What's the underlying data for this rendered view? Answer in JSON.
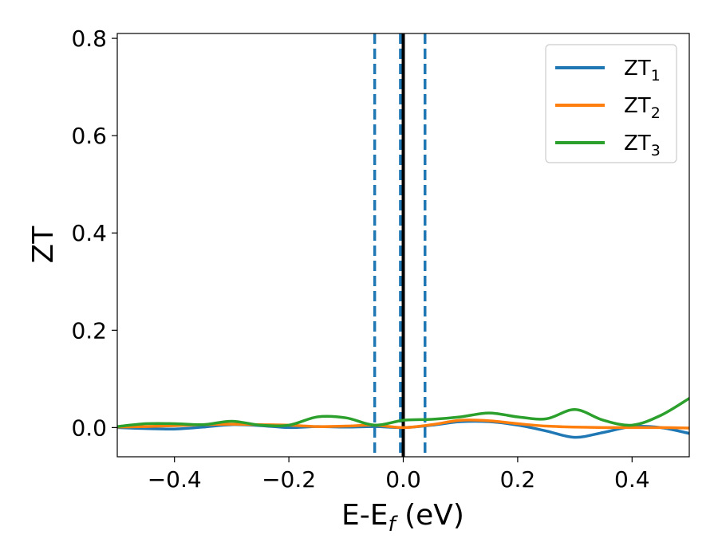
{
  "chart_data": {
    "type": "line",
    "title": "",
    "xlabel": "E-E",
    "xlabel_sub": "f",
    "xlabel_unit": " (eV)",
    "ylabel": "ZT",
    "xlim": [
      -0.5,
      0.5
    ],
    "ylim": [
      -0.06,
      0.81
    ],
    "x_ticks": [
      -0.4,
      -0.2,
      0.0,
      0.2,
      0.4
    ],
    "x_tick_labels": [
      "−0.4",
      "−0.2",
      "0.0",
      "0.2",
      "0.4"
    ],
    "y_ticks": [
      0.0,
      0.2,
      0.4,
      0.6,
      0.8
    ],
    "y_tick_labels": [
      "0.0",
      "0.2",
      "0.4",
      "0.6",
      "0.8"
    ],
    "grid": false,
    "legend_position": "top-right",
    "vertical_lines": [
      {
        "x": -0.05,
        "style": "dashed",
        "color": "#1f77b4"
      },
      {
        "x": -0.005,
        "style": "dashed",
        "color": "#1f77b4"
      },
      {
        "x": 0.038,
        "style": "dashed",
        "color": "#1f77b4"
      },
      {
        "x": 0.0,
        "style": "solid",
        "color": "#000000"
      }
    ],
    "series": [
      {
        "name": "ZT",
        "sub": "1",
        "color": "#1f77b4",
        "x": [
          -0.5,
          -0.45,
          -0.4,
          -0.35,
          -0.3,
          -0.25,
          -0.2,
          -0.15,
          -0.1,
          -0.05,
          0.0,
          0.05,
          0.1,
          0.15,
          0.2,
          0.25,
          0.3,
          0.35,
          0.4,
          0.45,
          0.5
        ],
        "y": [
          0.0,
          -0.002,
          -0.003,
          0.001,
          0.006,
          0.004,
          0.0,
          0.002,
          0.001,
          0.002,
          0.0,
          0.005,
          0.012,
          0.012,
          0.005,
          -0.007,
          -0.02,
          -0.01,
          0.002,
          0.0,
          -0.012
        ]
      },
      {
        "name": "ZT",
        "sub": "2",
        "color": "#ff7f0e",
        "x": [
          -0.5,
          -0.45,
          -0.4,
          -0.35,
          -0.3,
          -0.25,
          -0.2,
          -0.15,
          -0.1,
          -0.05,
          0.0,
          0.05,
          0.1,
          0.15,
          0.2,
          0.25,
          0.3,
          0.35,
          0.4,
          0.45,
          0.5
        ],
        "y": [
          0.001,
          0.002,
          0.004,
          0.006,
          0.007,
          0.006,
          0.005,
          0.002,
          0.003,
          0.005,
          0.0,
          0.006,
          0.015,
          0.014,
          0.008,
          0.003,
          0.001,
          0.0,
          0.0,
          0.0,
          -0.001
        ]
      },
      {
        "name": "ZT",
        "sub": "3",
        "color": "#2ca02c",
        "x": [
          -0.5,
          -0.45,
          -0.4,
          -0.35,
          -0.3,
          -0.25,
          -0.2,
          -0.15,
          -0.1,
          -0.05,
          0.0,
          0.05,
          0.1,
          0.15,
          0.2,
          0.25,
          0.3,
          0.35,
          0.4,
          0.45,
          0.5
        ],
        "y": [
          0.002,
          0.008,
          0.008,
          0.006,
          0.013,
          0.005,
          0.005,
          0.022,
          0.02,
          0.005,
          0.015,
          0.017,
          0.022,
          0.03,
          0.022,
          0.018,
          0.037,
          0.015,
          0.005,
          0.025,
          0.06
        ]
      }
    ]
  }
}
